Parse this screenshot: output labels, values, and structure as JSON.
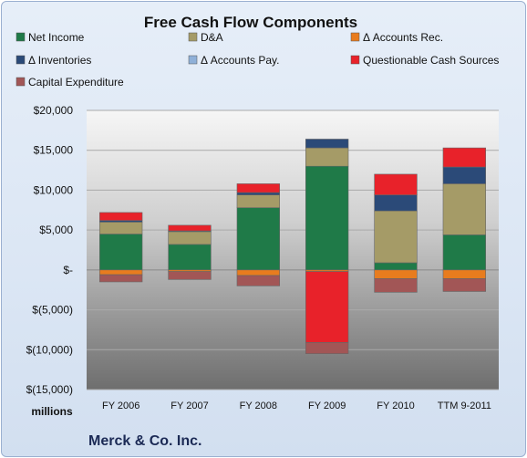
{
  "chart_data": {
    "type": "bar",
    "stacked": true,
    "title": "Free Cash Flow Components",
    "unit_label": "millions",
    "footer": "Merck & Co. Inc.",
    "categories": [
      "FY 2006",
      "FY 2007",
      "FY 2008",
      "FY 2009",
      "FY 2010",
      "TTM 9-2011"
    ],
    "ylim": [
      -15000,
      20000
    ],
    "yticks": [
      20000,
      15000,
      10000,
      5000,
      0,
      -5000,
      -10000,
      -15000
    ],
    "ytick_labels": [
      "$20,000",
      "$15,000",
      "$10,000",
      "$5,000",
      "$-",
      "$(5,000)",
      "$(10,000)",
      "$(15,000)"
    ],
    "grid": true,
    "legend_position": "top",
    "series": [
      {
        "name": "Net Income",
        "color": "#1f7a48",
        "values": [
          4500,
          3200,
          7800,
          13000,
          900,
          4400
        ]
      },
      {
        "name": "D&A",
        "color": "#a59b67",
        "values": [
          1500,
          1600,
          1600,
          2300,
          6500,
          6400
        ]
      },
      {
        "name": "Δ Accounts Rec.",
        "color": "#e87c1e",
        "values": [
          -600,
          -200,
          -700,
          -200,
          -1100,
          -1100
        ]
      },
      {
        "name": "Δ Inventories",
        "color": "#2b4a78",
        "values": [
          200,
          100,
          300,
          1100,
          2000,
          2100
        ]
      },
      {
        "name": "Δ Accounts Pay.",
        "color": "#8fb0d8",
        "values": [
          0,
          0,
          0,
          0,
          0,
          0
        ]
      },
      {
        "name": "Questionable Cash Sources",
        "color": "#e8222a",
        "values": [
          1000,
          700,
          1100,
          -8900,
          2600,
          2400
        ]
      },
      {
        "name": "Capital Expenditure",
        "color": "#a25656",
        "values": [
          -900,
          -1000,
          -1300,
          -1400,
          -1700,
          -1600
        ]
      }
    ]
  }
}
